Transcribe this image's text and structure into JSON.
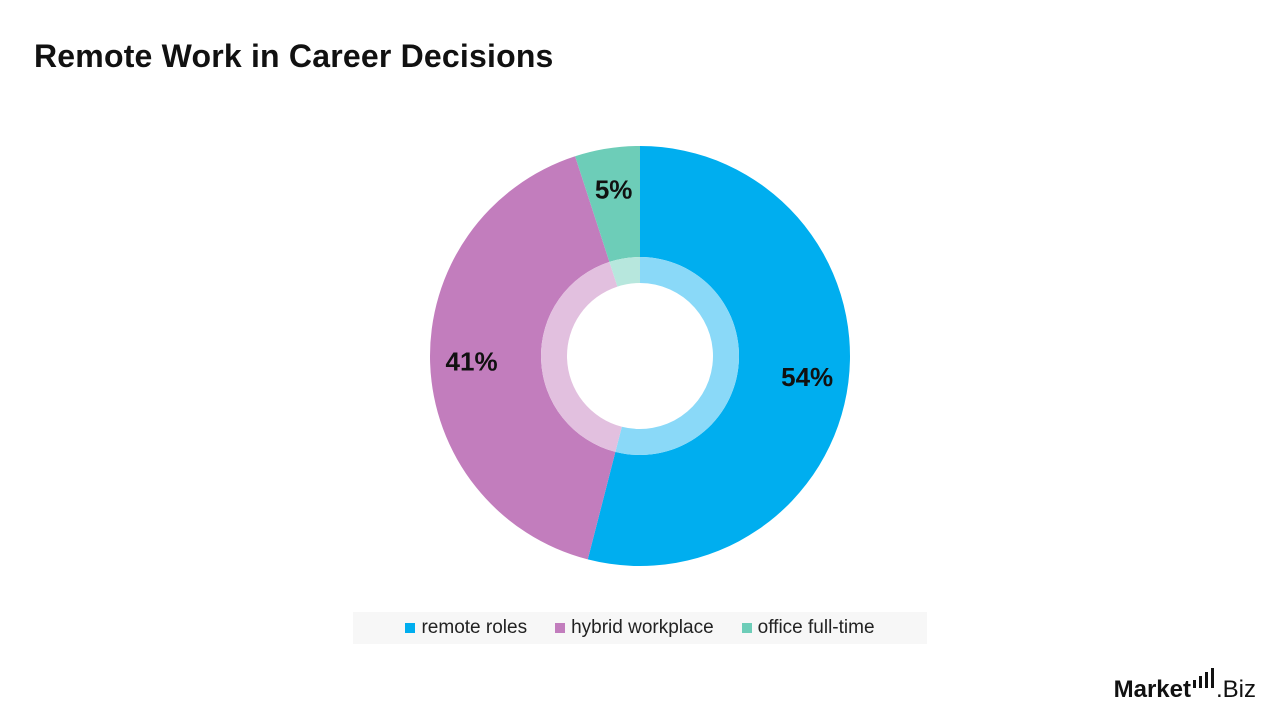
{
  "chart_data": {
    "type": "pie",
    "title": "Remote Work in Career Decisions",
    "categories": [
      "remote roles",
      "hybrid workplace",
      "office full-time"
    ],
    "values": [
      54,
      41,
      5
    ],
    "labels": [
      "54%",
      "41%",
      "5%"
    ],
    "colors": [
      "#00aeef",
      "#c27dbd",
      "#6dcdb8"
    ],
    "inner_ring_colors": [
      "#8ad9f8",
      "#e2c0df",
      "#b7e7dd"
    ],
    "legend_position": "bottom",
    "style": "donut"
  },
  "brand": {
    "part1": "Market",
    "part2": ".Biz"
  }
}
